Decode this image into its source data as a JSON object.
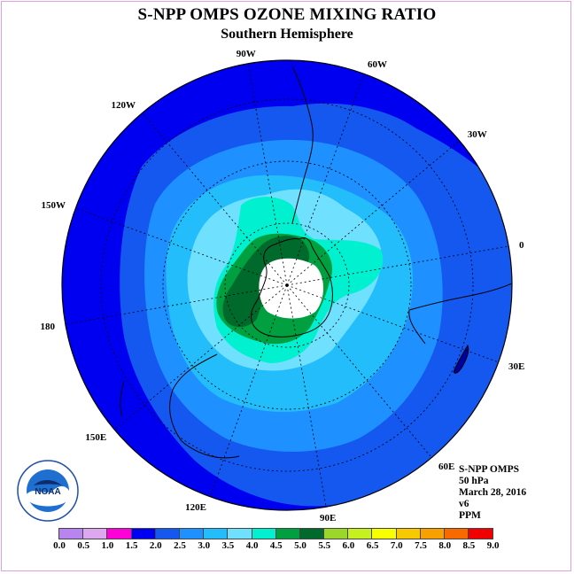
{
  "title": "S-NPP OMPS OZONE MIXING RATIO",
  "subtitle": "Southern Hemisphere",
  "longitude_labels": [
    "90W",
    "60W",
    "30W",
    "0",
    "30E",
    "60E",
    "90E",
    "120E",
    "150E",
    "180",
    "150W",
    "120W"
  ],
  "info": {
    "instrument": "S-NPP OMPS",
    "level": "50 hPa",
    "date": "March 28, 2016",
    "version": "v6",
    "units": "PPM"
  },
  "logo_text": "NOAA",
  "colorbar": {
    "ticks": [
      "0.0",
      "0.5",
      "1.0",
      "1.5",
      "2.0",
      "2.5",
      "3.0",
      "3.5",
      "4.0",
      "4.5",
      "5.0",
      "5.5",
      "6.0",
      "6.5",
      "7.0",
      "7.5",
      "8.0",
      "8.5",
      "9.0"
    ],
    "colors": [
      "#b784f0",
      "#dda8f0",
      "#ff00d8",
      "#0000f0",
      "#1458f0",
      "#1e90ff",
      "#22bdfa",
      "#70e0ff",
      "#00f0d0",
      "#00a040",
      "#006a2c",
      "#9cd62a",
      "#c6f020",
      "#f8ff00",
      "#f8c800",
      "#f8a000",
      "#f86a00",
      "#f00000",
      "#8c5a3c"
    ]
  },
  "map_colors": {
    "level_1_5_2_0": "#0000f0",
    "level_2_0_2_5": "#1458f0",
    "level_2_5_3_0": "#1e90ff",
    "level_3_0_3_5": "#22bdfa",
    "level_3_5_4_0": "#70e0ff",
    "level_4_0_4_5": "#00f0d0",
    "level_4_5_5_0": "#00a040",
    "level_5_0_5_5": "#006a2c",
    "missing_polar_night": "#ffffff"
  }
}
